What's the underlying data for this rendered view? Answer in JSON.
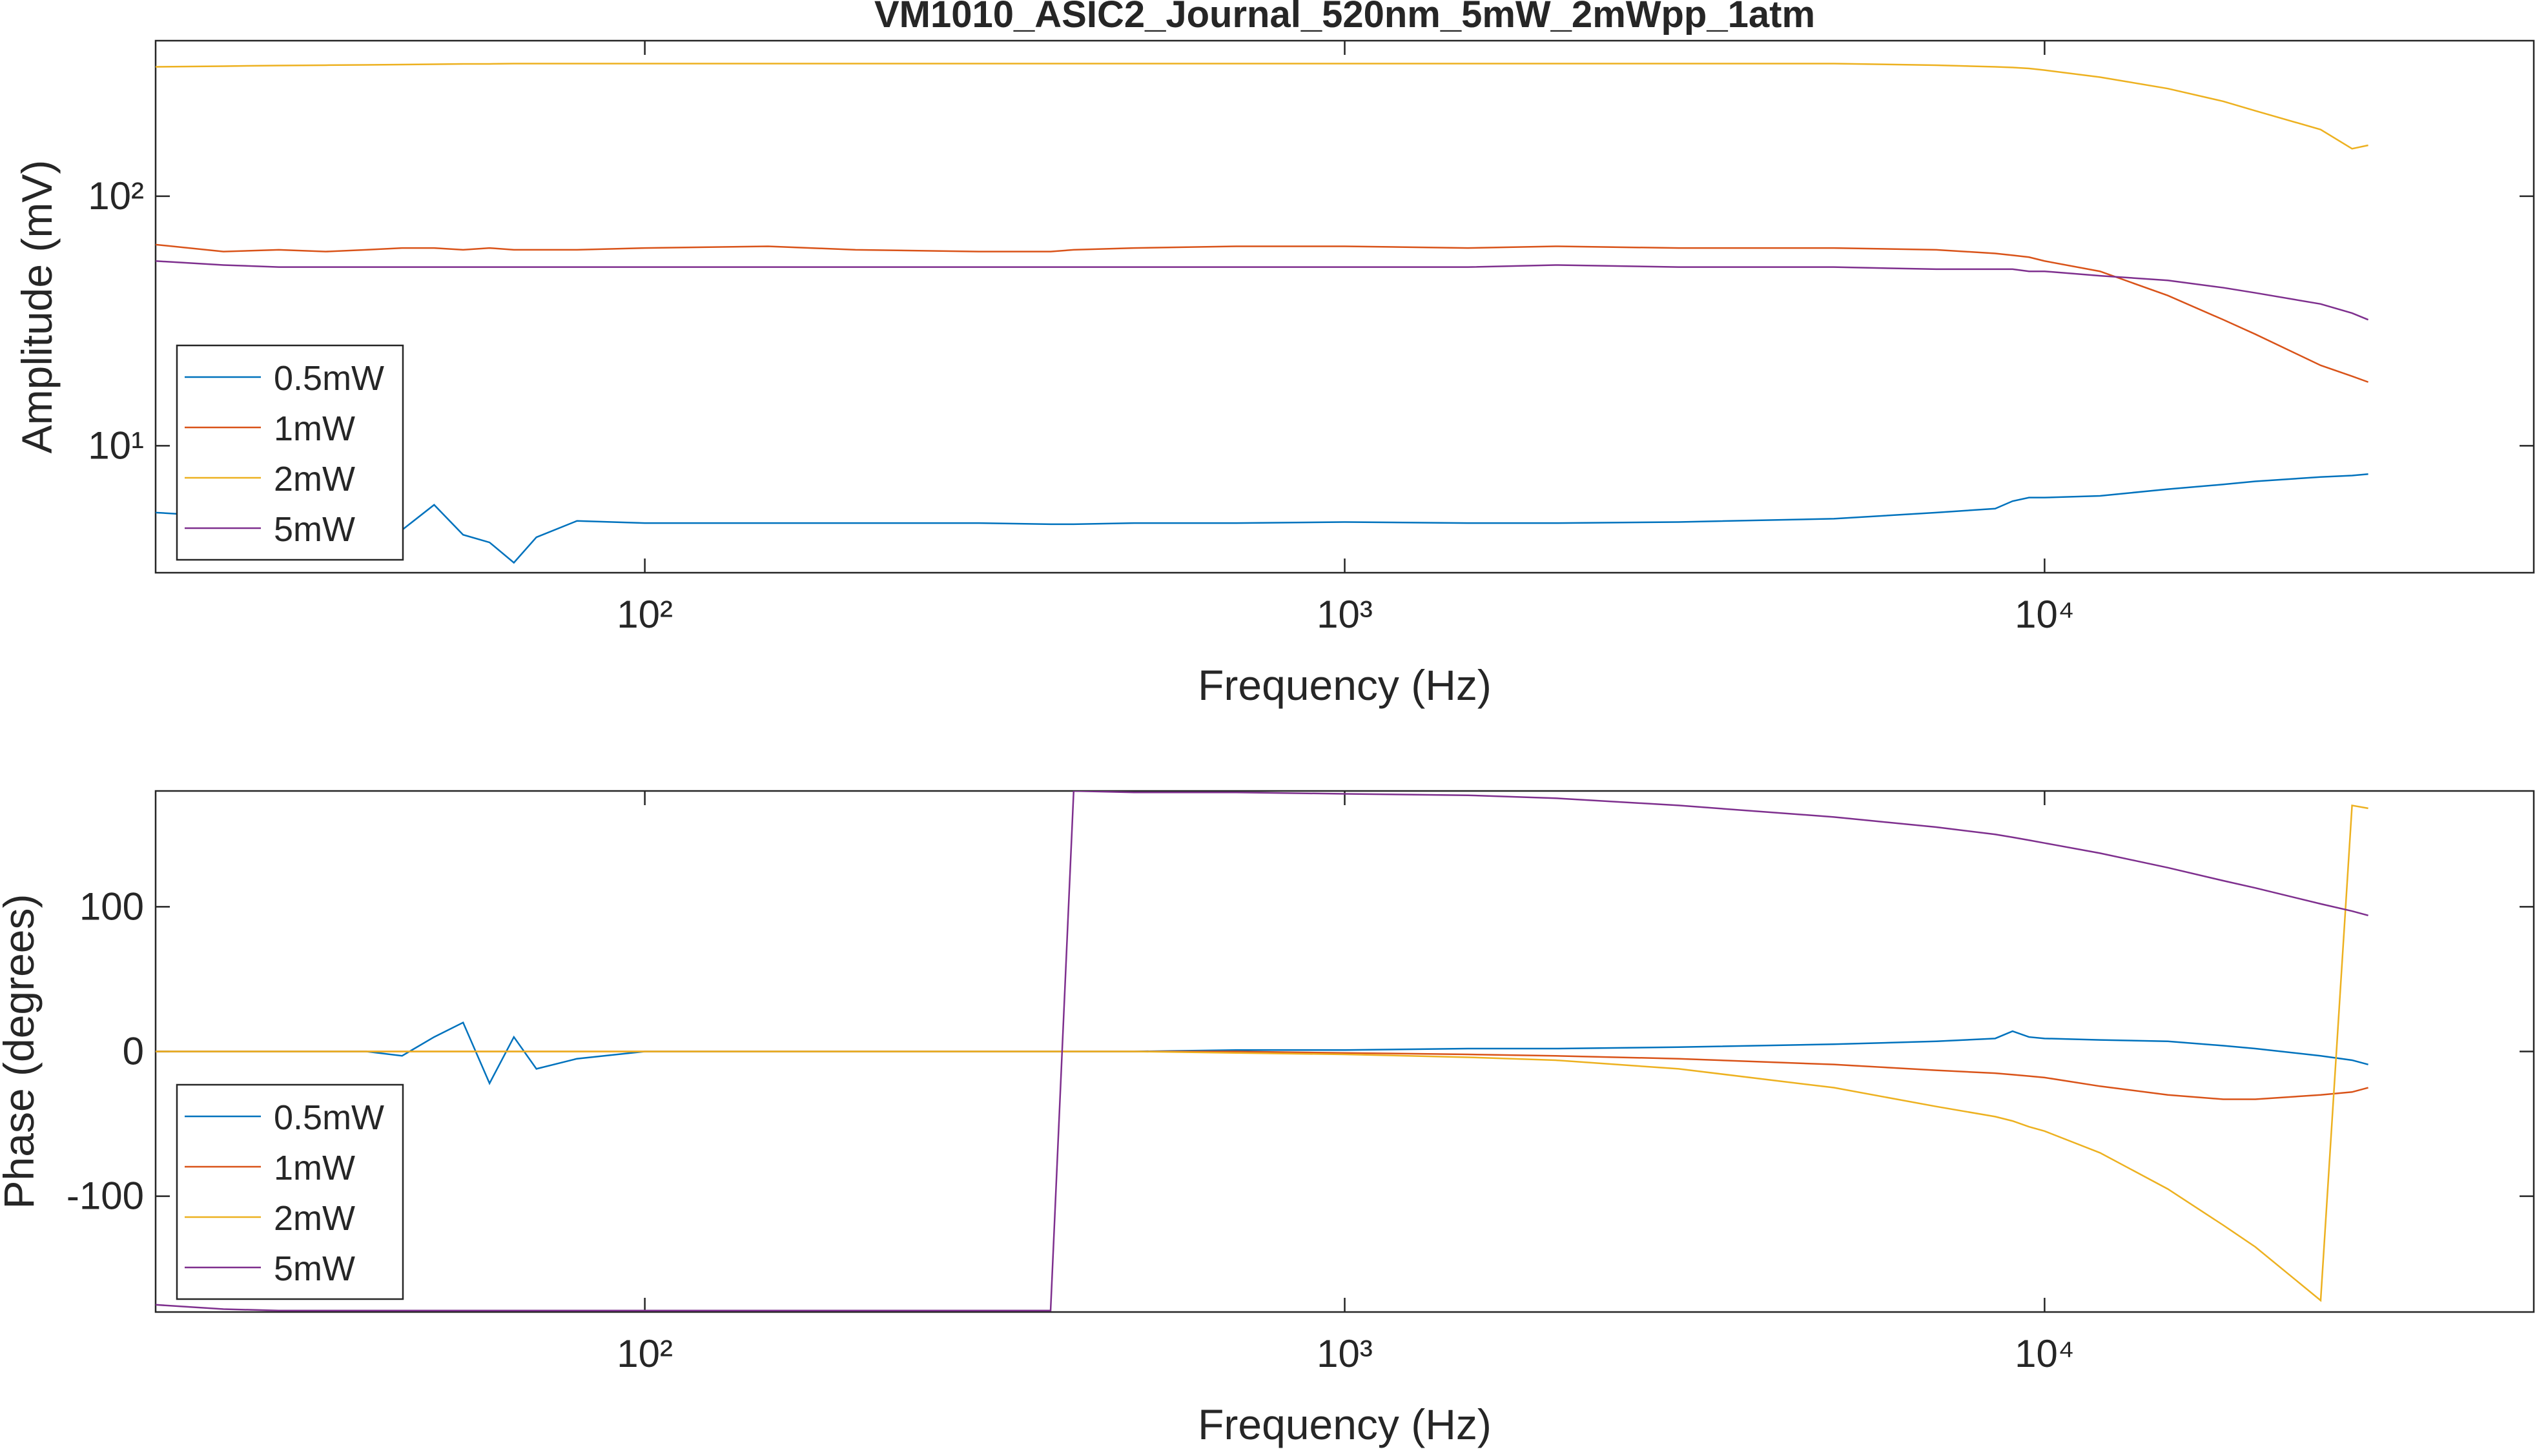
{
  "chart_data": [
    {
      "type": "line",
      "title": "VM1010_ASIC2_Journal_520nm_5mW_2mWpp_1atm",
      "x_label": "Frequency (Hz)",
      "y_label": "Amplitude (mV)",
      "xscale": "log",
      "yscale": "log",
      "legend": "lower left",
      "xlim": [
        20,
        50000
      ],
      "ylim": [
        3.1,
        420
      ],
      "xticks": [
        {
          "value": 100,
          "label": "10²"
        },
        {
          "value": 1000,
          "label": "10³"
        },
        {
          "value": 10000,
          "label": "10⁴"
        }
      ],
      "yticks": [
        {
          "value": 10,
          "label": "10¹"
        },
        {
          "value": 100,
          "label": "10²"
        }
      ],
      "x": [
        20,
        25,
        30,
        35,
        40,
        45,
        50,
        55,
        60,
        65,
        70,
        80,
        100,
        150,
        200,
        300,
        380,
        410,
        500,
        700,
        1000,
        1500,
        2000,
        3000,
        5000,
        7000,
        8500,
        9000,
        9500,
        10000,
        12000,
        15000,
        18000,
        20000,
        24800,
        27500,
        29000
      ],
      "series": [
        {
          "name": "0.5mW",
          "color": "#0072BD",
          "values": [
            5.4,
            5.2,
            5.0,
            4.8,
            4.5,
            4.6,
            5.8,
            4.4,
            4.1,
            3.4,
            4.3,
            5.0,
            4.9,
            4.9,
            4.9,
            4.9,
            4.85,
            4.85,
            4.9,
            4.9,
            4.95,
            4.9,
            4.9,
            4.95,
            5.1,
            5.4,
            5.6,
            6.0,
            6.2,
            6.2,
            6.3,
            6.7,
            7.0,
            7.2,
            7.5,
            7.6,
            7.7
          ]
        },
        {
          "name": "1mW",
          "color": "#D95319",
          "values": [
            64,
            60,
            61,
            60,
            61,
            62,
            62,
            61,
            62,
            61,
            61,
            61,
            62,
            63,
            61,
            60,
            60,
            61,
            62,
            63,
            63,
            62,
            63,
            62,
            62,
            61,
            59,
            58,
            57,
            55,
            50,
            40,
            32,
            28,
            21,
            19,
            18
          ]
        },
        {
          "name": "2mW",
          "color": "#EDB120",
          "values": [
            330,
            332,
            334,
            335,
            336,
            337,
            338,
            339,
            339,
            340,
            340,
            340,
            340,
            340,
            340,
            340,
            340,
            340,
            340,
            340,
            340,
            340,
            340,
            340,
            340,
            335,
            330,
            328,
            325,
            320,
            300,
            270,
            240,
            220,
            185,
            155,
            160
          ]
        },
        {
          "name": "5mW",
          "color": "#7E2F8E",
          "values": [
            55,
            53,
            52,
            52,
            52,
            52,
            52,
            52,
            52,
            52,
            52,
            52,
            52,
            52,
            52,
            52,
            52,
            52,
            52,
            52,
            52,
            52,
            53,
            52,
            52,
            51,
            51,
            51,
            50,
            50,
            48,
            46,
            43,
            41,
            37,
            34,
            32
          ]
        }
      ]
    },
    {
      "type": "line",
      "x_label": "Frequency (Hz)",
      "y_label": "Phase (degrees)",
      "xscale": "log",
      "yscale": "linear",
      "legend": "lower left",
      "xlim": [
        20,
        50000
      ],
      "ylim": [
        -180,
        180
      ],
      "xticks": [
        {
          "value": 100,
          "label": "10²"
        },
        {
          "value": 1000,
          "label": "10³"
        },
        {
          "value": 10000,
          "label": "10⁴"
        }
      ],
      "yticks": [
        -100,
        0,
        100
      ],
      "x": [
        20,
        25,
        30,
        35,
        40,
        45,
        50,
        55,
        60,
        65,
        70,
        80,
        100,
        150,
        200,
        300,
        380,
        410,
        500,
        700,
        1000,
        1500,
        2000,
        3000,
        5000,
        7000,
        8500,
        9000,
        9500,
        10000,
        12000,
        15000,
        18000,
        20000,
        24800,
        27500,
        29000
      ],
      "series": [
        {
          "name": "0.5mW",
          "color": "#0072BD",
          "values": [
            0,
            0,
            0,
            0,
            0,
            -3,
            10,
            20,
            -22,
            10,
            -12,
            -5,
            0,
            0,
            0,
            0,
            0,
            0,
            0,
            1,
            1,
            2,
            2,
            3,
            5,
            7,
            9,
            14,
            10,
            9,
            8,
            7,
            4,
            2,
            -3,
            -6,
            -9
          ]
        },
        {
          "name": "1mW",
          "color": "#D95319",
          "values": [
            0,
            0,
            0,
            0,
            0,
            0,
            0,
            0,
            0,
            0,
            0,
            0,
            0,
            0,
            0,
            0,
            0,
            0,
            0,
            0,
            -1,
            -2,
            -3,
            -5,
            -9,
            -13,
            -15,
            -16,
            -17,
            -18,
            -24,
            -30,
            -33,
            -33,
            -30,
            -28,
            -25
          ]
        },
        {
          "name": "2mW",
          "color": "#EDB120",
          "values": [
            0,
            0,
            0,
            0,
            0,
            0,
            0,
            0,
            0,
            0,
            0,
            0,
            0,
            0,
            0,
            0,
            0,
            0,
            0,
            -1,
            -2,
            -4,
            -6,
            -12,
            -25,
            -38,
            -45,
            -48,
            -52,
            -55,
            -70,
            -95,
            -120,
            -135,
            -172,
            170,
            168
          ]
        },
        {
          "name": "5mW",
          "color": "#7E2F8E",
          "values": [
            -175,
            -178,
            -179,
            -179,
            -179,
            -179,
            -179,
            -179,
            -179,
            -179,
            -179,
            -179,
            -179,
            -179,
            -179,
            -179,
            -179,
            180,
            179,
            179,
            178,
            177,
            175,
            170,
            162,
            155,
            150,
            148,
            146,
            144,
            137,
            127,
            118,
            113,
            102,
            97,
            94
          ]
        }
      ]
    }
  ]
}
